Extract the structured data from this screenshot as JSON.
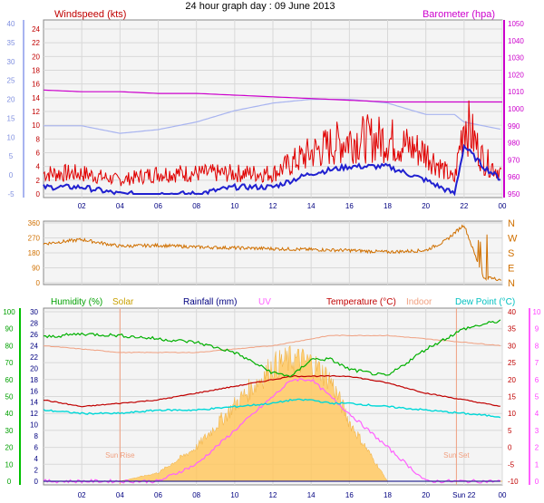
{
  "title": "24 hour graph day : 09 June 2013",
  "x_ticks": [
    "02",
    "04",
    "06",
    "08",
    "10",
    "12",
    "14",
    "16",
    "18",
    "20",
    "22",
    "00"
  ],
  "wind_panel": {
    "label_left": "Windspeed (kts)",
    "label_right": "Barometer (hpa)",
    "temp_axis_ticks": [
      "40",
      "35",
      "30",
      "25",
      "20",
      "15",
      "10",
      "5",
      "0",
      "-5"
    ],
    "wind_axis_ticks": [
      "24",
      "22",
      "20",
      "18",
      "16",
      "14",
      "12",
      "10",
      "8",
      "6",
      "4",
      "2",
      "0"
    ],
    "baro_axis_ticks": [
      "1050",
      "1040",
      "1030",
      "1020",
      "1010",
      "1000",
      "990",
      "980",
      "970",
      "960",
      "950"
    ],
    "colors": {
      "wind": "#e00000",
      "gust": "#2020d0",
      "baro": "#cc00cc",
      "outtemp": "#a8b4f0",
      "labels_left": "#c00000",
      "labels_right": "#cc00cc"
    }
  },
  "dir_panel": {
    "y_ticks": [
      "360",
      "270",
      "180",
      "90",
      "0"
    ],
    "compass": [
      "N",
      "W",
      "S",
      "E",
      "N"
    ],
    "color": "#d07000"
  },
  "bottom_panel": {
    "legend": [
      {
        "label": "Humidity (%)",
        "color": "#00a000"
      },
      {
        "label": "Solar",
        "color": "#c8a000"
      },
      {
        "label": "Rainfall (mm)",
        "color": "#000080"
      },
      {
        "label": "UV",
        "color": "#ff60ff"
      },
      {
        "label": "Temperature (°C)",
        "color": "#c00000"
      },
      {
        "label": "Indoor",
        "color": "#f0a080"
      },
      {
        "label": "Dew Point (°C)",
        "color": "#00c0c0"
      }
    ],
    "humidity_ticks": [
      "100",
      "90",
      "80",
      "70",
      "60",
      "50",
      "40",
      "30",
      "20",
      "10",
      "0"
    ],
    "rain_ticks": [
      "30",
      "28",
      "26",
      "24",
      "22",
      "20",
      "18",
      "16",
      "14",
      "12",
      "10",
      "8",
      "6",
      "4",
      "2",
      "0"
    ],
    "temp_ticks": [
      "40",
      "35",
      "30",
      "25",
      "20",
      "15",
      "10",
      "5",
      "0",
      "-5",
      "-10"
    ],
    "uv_ticks": [
      "10",
      "9",
      "8",
      "7",
      "6",
      "5",
      "4",
      "3",
      "2",
      "1",
      "0"
    ],
    "sunrise": "Sun Rise",
    "sunset": "Sun Set",
    "x_ticks": [
      "02",
      "04",
      "06",
      "08",
      "10",
      "12",
      "14",
      "16",
      "18",
      "20",
      "Sun 22",
      "00"
    ]
  },
  "chart_data": [
    {
      "type": "line",
      "title": "24 hour graph day : 09 June 2013",
      "x_hours": [
        0,
        2,
        4,
        6,
        8,
        10,
        12,
        14,
        16,
        18,
        20,
        21.5,
        22,
        23,
        24
      ],
      "series": [
        {
          "name": "Windspeed (kts)",
          "values": [
            3,
            3,
            2,
            3,
            3,
            3,
            3,
            6,
            8,
            8,
            6,
            2,
            11,
            5,
            3
          ]
        },
        {
          "name": "Barometer (hpa)",
          "values": [
            1011,
            1010,
            1010,
            1009,
            1009,
            1008,
            1007,
            1006,
            1005,
            1004,
            1004,
            1004,
            1004,
            1004,
            1004
          ]
        }
      ],
      "series_unlabeled": [
        {
          "values": [
            1,
            1,
            0,
            0,
            0,
            1,
            1,
            3,
            4,
            4,
            2,
            0,
            7,
            4,
            2
          ]
        },
        {
          "values": [
            13,
            13,
            11,
            12,
            14,
            17,
            19,
            20,
            20,
            19,
            16,
            16,
            14,
            13,
            12
          ]
        }
      ],
      "ylim_wind": [
        0,
        25
      ],
      "ylim_baro": [
        945,
        1050
      ]
    },
    {
      "type": "line",
      "title": "Wind direction",
      "x_hours": [
        0,
        2,
        4,
        6,
        8,
        10,
        12,
        14,
        16,
        18,
        20,
        21,
        22,
        23,
        24
      ],
      "values": [
        235,
        260,
        220,
        225,
        215,
        210,
        205,
        200,
        195,
        185,
        195,
        250,
        350,
        30,
        20
      ],
      "ylim": [
        0,
        360
      ]
    },
    {
      "type": "line",
      "x_hours": [
        0,
        2,
        4,
        6,
        8,
        10,
        12,
        13,
        14,
        15,
        16,
        18,
        20,
        22,
        24
      ],
      "series": [
        {
          "name": "Humidity (%)",
          "values": [
            85,
            87,
            86,
            84,
            82,
            76,
            64,
            62,
            72,
            72,
            66,
            62,
            78,
            90,
            95
          ]
        },
        {
          "name": "Temperature (°C)",
          "values": [
            14,
            12,
            13,
            14,
            16,
            18,
            20,
            21,
            21,
            21,
            21,
            19,
            16,
            14,
            12
          ]
        },
        {
          "name": "Indoor",
          "values": [
            30,
            29,
            28,
            28,
            28,
            29,
            30,
            31,
            32,
            33,
            33,
            33,
            32,
            31,
            30
          ]
        },
        {
          "name": "Dew Point (°C)",
          "values": [
            11,
            10,
            10,
            11,
            11,
            12,
            13,
            14,
            14,
            13,
            13,
            12,
            11,
            10,
            9
          ]
        },
        {
          "name": "UV",
          "values": [
            0,
            0,
            0,
            0,
            1,
            3,
            5,
            6,
            6,
            5,
            4,
            2,
            0,
            0,
            0
          ]
        },
        {
          "name": "Solar",
          "values": [
            0,
            0,
            0,
            5,
            20,
            45,
            68,
            72,
            70,
            60,
            35,
            0,
            0,
            0,
            0
          ]
        },
        {
          "name": "Rainfall (mm)",
          "values": [
            0,
            0,
            0,
            0,
            0,
            0,
            0,
            0,
            0,
            0,
            0,
            0,
            0,
            0,
            0
          ]
        }
      ]
    }
  ]
}
